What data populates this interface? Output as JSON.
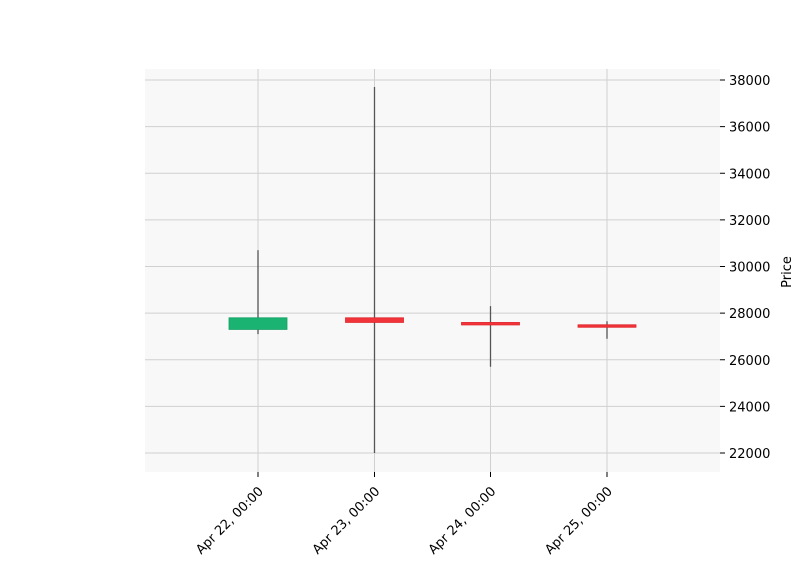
{
  "chart_data": {
    "type": "candlestick",
    "title": "",
    "xlabel": "",
    "ylabel": "Price",
    "ylim": [
      21200,
      38500
    ],
    "yticks": [
      22000,
      24000,
      26000,
      28000,
      30000,
      32000,
      34000,
      36000,
      38000
    ],
    "grid": true,
    "y_axis_side": "right",
    "colors": {
      "up": "#1ab371",
      "down": "#f0343a",
      "wick": "#555555",
      "grid": "#d0d0d0",
      "plot_bg": "#f8f8f8"
    },
    "candles": [
      {
        "x": "Apr 22, 00:00",
        "open": 27300,
        "high": 30700,
        "low": 27100,
        "close": 27800
      },
      {
        "x": "Apr 23, 00:00",
        "open": 27800,
        "high": 37700,
        "low": 22000,
        "close": 27600
      },
      {
        "x": "Apr 24, 00:00",
        "open": 27600,
        "high": 28300,
        "low": 25700,
        "close": 27500
      },
      {
        "x": "Apr 25, 00:00",
        "open": 27500,
        "high": 27650,
        "low": 26900,
        "close": 27400
      }
    ]
  }
}
